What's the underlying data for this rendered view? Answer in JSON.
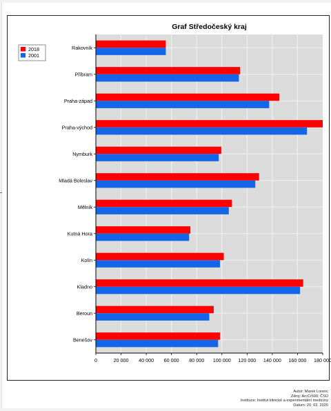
{
  "chart_data": {
    "type": "bar",
    "orientation": "horizontal",
    "title": "Graf Středočeský kraj",
    "xlabel": "",
    "ylabel": "",
    "xlim": [
      0,
      180000
    ],
    "grid": true,
    "legend_position": "top-left",
    "categories": [
      "Rakovník",
      "Příbram",
      "Praha-západ",
      "Praha-východ",
      "Nymburk",
      "Mladá Boleslav",
      "Mělník",
      "Kutná Hora",
      "Kolín",
      "Kladno",
      "Beroun",
      "Benešov"
    ],
    "series": [
      {
        "name": "2018",
        "color": "#ff0000",
        "values": [
          55500,
          114500,
          145500,
          180500,
          99500,
          129500,
          108000,
          75000,
          101500,
          164500,
          93500,
          98500
        ]
      },
      {
        "name": "2001",
        "color": "#1565e8",
        "values": [
          55500,
          113500,
          137500,
          167500,
          97500,
          126500,
          105500,
          74000,
          98500,
          162000,
          90000,
          97000
        ]
      }
    ],
    "xticks": [
      "0",
      "20 000",
      "40 000",
      "60 000",
      "80 000",
      "100 000",
      "120 000",
      "140 000",
      "160 000",
      "180 000"
    ]
  },
  "credits": {
    "author": "Autor: Marek Lorenc",
    "source": "Zdroj: ArcCr500; ČSÚ",
    "institution": "Instituce: Institut klinické a experimentální medicíny",
    "date": "Datum: 20. 02. 2020"
  }
}
